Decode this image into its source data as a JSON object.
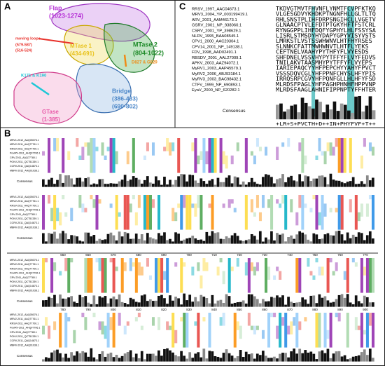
{
  "panel_a": {
    "label": "A",
    "domains": [
      {
        "name": "Flap",
        "range": "(1023-1274)",
        "color": "#b62fd6"
      },
      {
        "name": "moving loops",
        "range": "(579-587)",
        "range2": "(516-524)",
        "color": "#e8302a"
      },
      {
        "name": "MTase 1",
        "range": "(434-691)",
        "color": "#e8c21c"
      },
      {
        "name": "MTase 2",
        "range": "(804-1022)",
        "color": "#1f8b2a"
      },
      {
        "name": "D827 & G829",
        "color": "#ef8b17"
      },
      {
        "name": "K171 & K190",
        "color": "#1fc7d6"
      },
      {
        "name": "Bridge",
        "range": "(386-433)",
        "range2": "(690-802)",
        "color": "#4a86c8"
      },
      {
        "name": "GTase",
        "range": "(1-385)",
        "color": "#e85aa8"
      }
    ]
  },
  "panel_b": {
    "label": "B",
    "consensus_label": "Consensus",
    "sequence_names": [
      "MRV1-2012_AAQ05076.1",
      "MRV2-2011_AAQ77761.1",
      "RRSV-2011_AAQ77700.1",
      "PoviRV-2011_AHQ07706.1",
      "CRV-2011_AAQ77780.1",
      "POKV-2011_QCT51339.1",
      "CCRV-2011_QAQ14873.1",
      "MBRV-2012_AAQ01038.1"
    ],
    "rulers": [
      [
        "650",
        "660",
        "670",
        "680",
        "690",
        "700",
        "710",
        "720",
        "730",
        "740",
        "750",
        "760",
        "770"
      ],
      [
        "780",
        "790",
        "800",
        "810",
        "820",
        "830",
        "840",
        "850",
        "860",
        "870",
        "880",
        "890",
        "900"
      ]
    ]
  },
  "panel_c": {
    "label": "C",
    "rows": [
      {
        "name": "RRSV_1997_AAC04673.1",
        "seq": "TKDVGTMVTFHVNFLYNMTFCVPFKTKQ"
      },
      {
        "name": "MRV3_2004_YP_003199419.1",
        "seq": "VLGESGDVYKHDKPTNGNFHLLGLTLTQ"
      },
      {
        "name": "ARV_2001_AAM46173.1",
        "seq": "RHLSNSTPLIHFDRPSNGIHCLLVGETV"
      },
      {
        "name": "GSRV_2001_NP_938060.1",
        "seq": "GLNAACPTVLEFDTPTGKYHFTFSTCRL"
      },
      {
        "name": "CSRV_2001_YP_398629.1",
        "seq": "RYNGGPPLIHFDQFYGPHYLHLFSSYSA"
      },
      {
        "name": "NLRV_1995_BAA08545.1",
        "seq": "LISRLSTMSDYHYDAPYGPYVISYVSTS"
      },
      {
        "name": "CPV1_2000_AAC20304.1",
        "seq": "LMRKSTLVSTSSWHWNVLHTFHYRSES"
      },
      {
        "name": "CPV14_2001_NP_149138.1",
        "seq": "SLNNKCFATTMWHWNVTLHTFLYEKS"
      },
      {
        "name": "FDV_1998_AAD02491.1",
        "seq": "CEFTNELVAAHYPYTHFYFLVYESDS"
      },
      {
        "name": "RBSDV_2001_AAL27009.1",
        "seq": "SHFDNELVSSVHYPYTFFYFLVYFEDVS"
      },
      {
        "name": "APKV_2003_AAZ94072.1",
        "seq": "TNILAKVTAASMHYPYTFFYFLVYEPS"
      },
      {
        "name": "MyRV1_2003_AAP45579.1",
        "seq": "IARIEPAQCYYHFPEPCHYYAHYFPVCT"
      },
      {
        "name": "MyRV2_2006_ABJ93184.1",
        "seq": "VSSSDQVCGLYHFPPNFCHYSLHFYPIS"
      },
      {
        "name": "MyRV3_2003_BAC98432.1",
        "seq": "IRRQSRPCGVYHFPQNFGLLHLHFYFSD"
      },
      {
        "name": "CTFV_1999_NP_690893.1",
        "seq": "MLRDSFPAGLYHFPAGHPHNHFHPPVNP"
      },
      {
        "name": "EyaV_2000_NP_620282.1",
        "seq": "MLRDSFAAGLAHNIFIPPNPTYFFHTER"
      }
    ],
    "consensus_label": "Consensus",
    "consensus": "+LR+S+PVCTH+D++IN+PHYFVF+T++"
  }
}
